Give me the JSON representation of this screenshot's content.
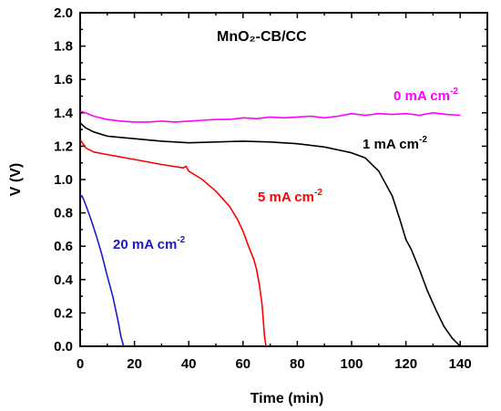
{
  "chart_data": {
    "type": "line",
    "title": "MnO₂-CB/CC",
    "xlabel": "Time (min)",
    "ylabel": "V (V)",
    "xlim": [
      0,
      150
    ],
    "ylim": [
      0,
      2.0
    ],
    "x_ticks": [
      0,
      20,
      40,
      60,
      80,
      100,
      120,
      140
    ],
    "y_ticks": [
      0.0,
      0.2,
      0.4,
      0.6,
      0.8,
      1.0,
      1.2,
      1.4,
      1.6,
      1.8,
      2.0
    ],
    "x_tick_labels": [
      "0",
      "20",
      "40",
      "60",
      "80",
      "100",
      "120",
      "140"
    ],
    "y_tick_labels": [
      "0.0",
      "0.2",
      "0.4",
      "0.6",
      "0.8",
      "1.0",
      "1.2",
      "1.4",
      "1.6",
      "1.8",
      "2.0"
    ],
    "grid": false,
    "series": [
      {
        "name": "0 mA cm-2",
        "label_text": "0   mA cm",
        "label_sup": "-2",
        "color": "#ff00ff",
        "x": [
          0,
          2,
          5,
          10,
          15,
          20,
          25,
          30,
          35,
          40,
          45,
          50,
          55,
          60,
          65,
          70,
          75,
          80,
          85,
          90,
          95,
          100,
          105,
          110,
          115,
          120,
          125,
          130,
          135,
          140
        ],
        "y": [
          1.41,
          1.4,
          1.38,
          1.36,
          1.35,
          1.345,
          1.345,
          1.35,
          1.345,
          1.35,
          1.355,
          1.36,
          1.36,
          1.37,
          1.365,
          1.375,
          1.37,
          1.375,
          1.38,
          1.37,
          1.38,
          1.395,
          1.385,
          1.395,
          1.39,
          1.395,
          1.385,
          1.4,
          1.39,
          1.385
        ]
      },
      {
        "name": "1 mA cm-2",
        "label_text": "1 mA cm",
        "label_sup": "-2",
        "color": "#000000",
        "x": [
          0,
          2,
          5,
          10,
          20,
          30,
          40,
          50,
          60,
          70,
          80,
          90,
          100,
          105,
          110,
          115,
          118,
          120,
          122,
          125,
          128,
          131,
          134,
          137,
          140
        ],
        "y": [
          1.34,
          1.31,
          1.285,
          1.26,
          1.245,
          1.23,
          1.22,
          1.225,
          1.23,
          1.225,
          1.215,
          1.195,
          1.16,
          1.13,
          1.05,
          0.9,
          0.75,
          0.64,
          0.58,
          0.46,
          0.33,
          0.22,
          0.12,
          0.05,
          0.0
        ]
      },
      {
        "name": "5 mA cm-2",
        "label_text": "5 mA cm",
        "label_sup": "-2",
        "color": "#ff0000",
        "x": [
          0,
          2,
          5,
          10,
          20,
          30,
          38,
          39,
          40,
          45,
          50,
          55,
          58,
          60,
          62,
          64,
          65,
          66,
          67,
          67.5,
          68,
          68.5
        ],
        "y": [
          1.24,
          1.19,
          1.165,
          1.15,
          1.12,
          1.09,
          1.07,
          1.08,
          1.05,
          1.0,
          0.93,
          0.84,
          0.76,
          0.69,
          0.6,
          0.52,
          0.46,
          0.37,
          0.25,
          0.15,
          0.05,
          0.0
        ]
      },
      {
        "name": "20 mA cm-2",
        "label_text": "20 mA cm",
        "label_sup": "-2",
        "color": "#1a1acc",
        "x": [
          0,
          1,
          2,
          4,
          6,
          8,
          10,
          12,
          14,
          15,
          16
        ],
        "y": [
          0.91,
          0.89,
          0.85,
          0.76,
          0.66,
          0.55,
          0.42,
          0.3,
          0.15,
          0.06,
          0.0
        ]
      }
    ]
  }
}
